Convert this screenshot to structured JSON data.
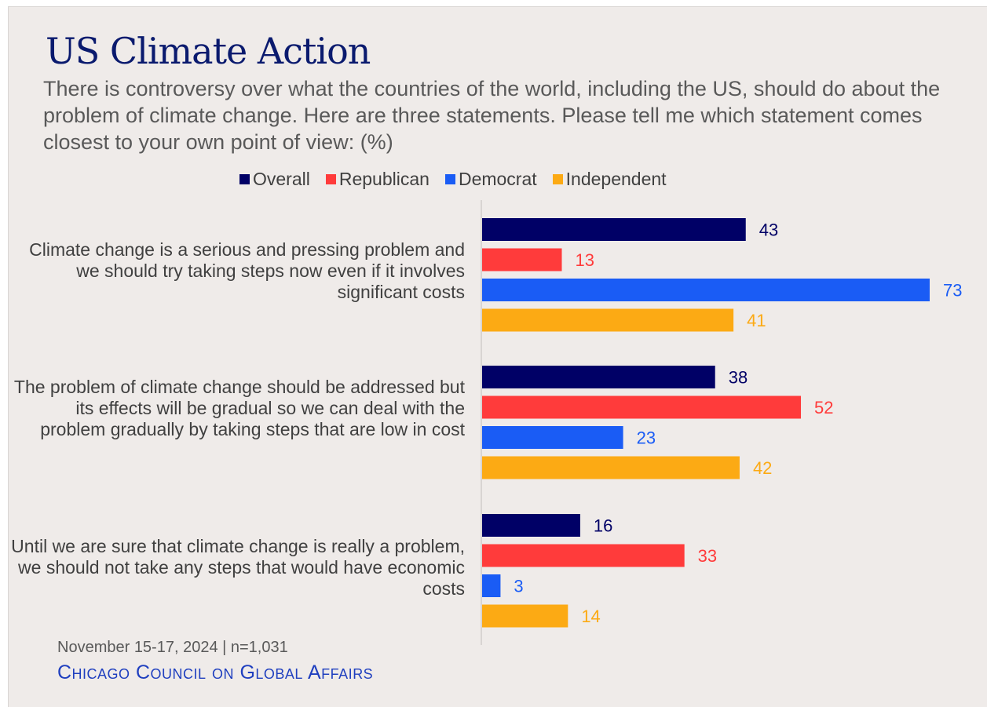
{
  "title": "US Climate Action",
  "subtitle": "There is controversy over what the countries of the world, including the US, should do about the problem of climate change. Here are three statements. Please tell me which statement comes closest to your own point of view: (%)",
  "footnote": "November 15-17, 2024 | n=1,031",
  "source": "Chicago Council on Global Affairs",
  "colors": {
    "Overall": "#000066",
    "Republican": "#ff3b3b",
    "Democrat": "#1a5cf5",
    "Independent": "#fcaa14",
    "background": "#efebe9"
  },
  "chart_data": {
    "type": "bar",
    "orientation": "horizontal",
    "title": "US Climate Action",
    "legend_position": "top",
    "categories": [
      "Climate change is a serious and pressing problem and we should try taking steps now even if it involves significant costs",
      "The problem of climate change should be addressed but its effects will be gradual so we can deal with the problem gradually by taking steps that are low in cost",
      "Until we are sure that climate change is really a problem, we should not take any steps that would have economic costs"
    ],
    "series": [
      {
        "name": "Overall",
        "values": [
          43,
          38,
          16
        ]
      },
      {
        "name": "Republican",
        "values": [
          13,
          52,
          33
        ]
      },
      {
        "name": "Democrat",
        "values": [
          73,
          23,
          3
        ]
      },
      {
        "name": "Independent",
        "values": [
          41,
          42,
          14
        ]
      }
    ],
    "xlim": [
      0,
      73
    ],
    "grid": false
  }
}
